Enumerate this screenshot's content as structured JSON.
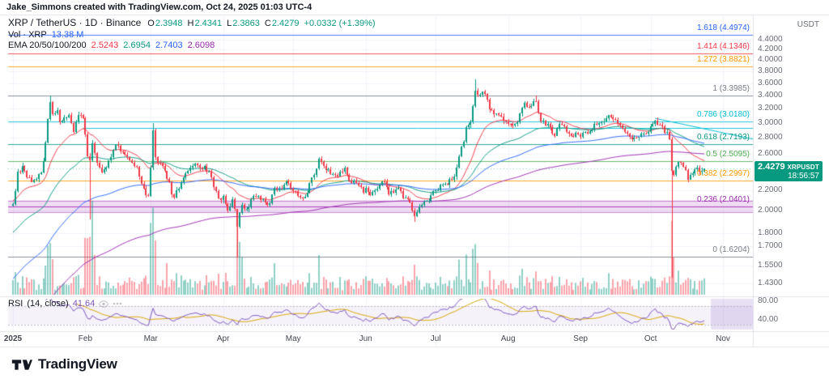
{
  "attribution": "Jake_Simmons created with TradingView.com, Oct 24, 2025 01:03 UTC-4",
  "legend": {
    "title": "XRP / TetherUS · 1D · Binance",
    "ohlc": {
      "o_label": "O",
      "o": "2.3948",
      "h_label": "H",
      "h": "2.4341",
      "l_label": "L",
      "l": "2.3863",
      "c_label": "C",
      "c": "2.4279",
      "change": "+0.0332 (+1.39%)"
    },
    "volume": {
      "label": "Vol · XRP",
      "value": "13.38 M"
    },
    "ema": {
      "label": "EMA 20/50/100/200",
      "values": [
        "2.5243",
        "2.6954",
        "2.7403",
        "2.6098"
      ]
    }
  },
  "rsi_legend": {
    "title": "RSI",
    "params": "(14, close)",
    "value": "41.64"
  },
  "price_axis": {
    "currency": "USDT",
    "labels": [
      "4.4000",
      "4.2000",
      "4.0000",
      "3.8000",
      "3.6000",
      "3.4000",
      "3.2000",
      "3.0000",
      "2.8000",
      "2.6000",
      "2.2000",
      "2.0000",
      "1.8000",
      "1.7000",
      "1.5500",
      "1.4300"
    ],
    "label_prices": [
      4.4,
      4.2,
      4.0,
      3.8,
      3.6,
      3.4,
      3.2,
      3.0,
      2.8,
      2.6,
      2.2,
      2.0,
      1.8,
      1.7,
      1.55,
      1.43
    ]
  },
  "rsi_axis": {
    "labels": [
      "80.00",
      "40.00"
    ],
    "values": [
      80,
      40
    ]
  },
  "time_axis": {
    "labels": [
      "2025",
      "Feb",
      "Mar",
      "Apr",
      "May",
      "Jun",
      "Jul",
      "Aug",
      "Sep",
      "Oct",
      "Nov"
    ],
    "day_offsets": [
      0,
      31,
      59,
      90,
      120,
      151,
      181,
      212,
      243,
      273,
      304
    ]
  },
  "price_badge": {
    "price": "2.4279",
    "symbol": "XRPUSDT",
    "countdown": "18:56:57"
  },
  "footer": {
    "logo_text": "TradingView"
  },
  "colors": {
    "up": "#089981",
    "down": "#f23645",
    "volume_value": "#2962ff",
    "rsi_line": "#7e57c2",
    "rsi_ma": "#d9a400",
    "accent_badge": "#089981",
    "grid": "#f0f3fa",
    "separator": "#e0e3eb",
    "axis_text": "#6a6d78"
  },
  "chart_data": {
    "type": "candlestick",
    "symbol": "XRPUSDT",
    "exchange": "Binance",
    "timeframe": "1D",
    "scale": "log",
    "start_date": "2025-01-01",
    "days": 297,
    "price_range_visible": [
      1.35,
      4.9
    ],
    "last_candle": {
      "o": 2.3948,
      "h": 2.4341,
      "l": 2.3863,
      "c": 2.4279
    },
    "close_anchors": [
      [
        0,
        2.05
      ],
      [
        1,
        2.18
      ],
      [
        2,
        2.38
      ],
      [
        4,
        2.44
      ],
      [
        6,
        2.36
      ],
      [
        8,
        2.28
      ],
      [
        10,
        2.33
      ],
      [
        12,
        2.4
      ],
      [
        13,
        2.5
      ],
      [
        14,
        2.74
      ],
      [
        15,
        3.06
      ],
      [
        16,
        3.29
      ],
      [
        17,
        3.14
      ],
      [
        18,
        3.1
      ],
      [
        19,
        3.17
      ],
      [
        20,
        3.04
      ],
      [
        22,
        3.08
      ],
      [
        24,
        3.12
      ],
      [
        26,
        2.9
      ],
      [
        27,
        3.03
      ],
      [
        29,
        3.13
      ],
      [
        30,
        3.05
      ],
      [
        31,
        2.87
      ],
      [
        32,
        2.58
      ],
      [
        33,
        2.5
      ],
      [
        34,
        2.73
      ],
      [
        35,
        2.62
      ],
      [
        36,
        2.48
      ],
      [
        38,
        2.4
      ],
      [
        40,
        2.46
      ],
      [
        42,
        2.55
      ],
      [
        44,
        2.73
      ],
      [
        45,
        2.68
      ],
      [
        47,
        2.6
      ],
      [
        49,
        2.56
      ],
      [
        51,
        2.5
      ],
      [
        53,
        2.42
      ],
      [
        55,
        2.28
      ],
      [
        57,
        2.16
      ],
      [
        58,
        2.12
      ],
      [
        59,
        2.46
      ],
      [
        60,
        2.87
      ],
      [
        61,
        2.54
      ],
      [
        62,
        2.5
      ],
      [
        64,
        2.44
      ],
      [
        66,
        2.34
      ],
      [
        68,
        2.17
      ],
      [
        69,
        2.14
      ],
      [
        71,
        2.24
      ],
      [
        73,
        2.34
      ],
      [
        75,
        2.38
      ],
      [
        77,
        2.47
      ],
      [
        78,
        2.5
      ],
      [
        80,
        2.42
      ],
      [
        82,
        2.44
      ],
      [
        84,
        2.38
      ],
      [
        86,
        2.24
      ],
      [
        88,
        2.14
      ],
      [
        89,
        2.09
      ],
      [
        90,
        2.13
      ],
      [
        92,
        2.01
      ],
      [
        94,
        2.09
      ],
      [
        95,
        2.0
      ],
      [
        96,
        1.88
      ],
      [
        97,
        1.97
      ],
      [
        98,
        2.07
      ],
      [
        100,
        2.0
      ],
      [
        102,
        2.09
      ],
      [
        104,
        2.15
      ],
      [
        106,
        2.1
      ],
      [
        108,
        2.07
      ],
      [
        110,
        2.06
      ],
      [
        112,
        2.24
      ],
      [
        114,
        2.2
      ],
      [
        116,
        2.25
      ],
      [
        118,
        2.29
      ],
      [
        119,
        2.22
      ],
      [
        120,
        2.21
      ],
      [
        122,
        2.14
      ],
      [
        124,
        2.12
      ],
      [
        126,
        2.18
      ],
      [
        128,
        2.32
      ],
      [
        130,
        2.42
      ],
      [
        131,
        2.56
      ],
      [
        132,
        2.5
      ],
      [
        134,
        2.42
      ],
      [
        136,
        2.39
      ],
      [
        138,
        2.34
      ],
      [
        140,
        2.4
      ],
      [
        142,
        2.44
      ],
      [
        144,
        2.32
      ],
      [
        146,
        2.28
      ],
      [
        148,
        2.25
      ],
      [
        150,
        2.17
      ],
      [
        151,
        2.23
      ],
      [
        153,
        2.16
      ],
      [
        155,
        2.2
      ],
      [
        157,
        2.27
      ],
      [
        159,
        2.3
      ],
      [
        161,
        2.16
      ],
      [
        163,
        2.18
      ],
      [
        165,
        2.2
      ],
      [
        167,
        2.14
      ],
      [
        169,
        2.1
      ],
      [
        171,
        2.02
      ],
      [
        172,
        1.96
      ],
      [
        174,
        2.05
      ],
      [
        176,
        2.09
      ],
      [
        178,
        2.11
      ],
      [
        180,
        2.19
      ],
      [
        181,
        2.17
      ],
      [
        183,
        2.23
      ],
      [
        185,
        2.26
      ],
      [
        187,
        2.3
      ],
      [
        189,
        2.36
      ],
      [
        190,
        2.42
      ],
      [
        191,
        2.55
      ],
      [
        193,
        2.78
      ],
      [
        194,
        2.92
      ],
      [
        196,
        2.99
      ],
      [
        197,
        3.21
      ],
      [
        198,
        3.47
      ],
      [
        199,
        3.42
      ],
      [
        200,
        3.4
      ],
      [
        202,
        3.45
      ],
      [
        203,
        3.3
      ],
      [
        204,
        3.18
      ],
      [
        206,
        3.13
      ],
      [
        208,
        3.08
      ],
      [
        210,
        3.05
      ],
      [
        211,
        3.02
      ],
      [
        212,
        2.96
      ],
      [
        214,
        2.99
      ],
      [
        216,
        3.02
      ],
      [
        218,
        3.2
      ],
      [
        219,
        3.28
      ],
      [
        221,
        3.2
      ],
      [
        223,
        3.29
      ],
      [
        224,
        3.33
      ],
      [
        225,
        3.12
      ],
      [
        226,
        3.04
      ],
      [
        228,
        2.99
      ],
      [
        230,
        2.92
      ],
      [
        232,
        2.84
      ],
      [
        234,
        2.99
      ],
      [
        236,
        2.93
      ],
      [
        238,
        2.88
      ],
      [
        240,
        2.81
      ],
      [
        242,
        2.87
      ],
      [
        243,
        2.83
      ],
      [
        245,
        2.86
      ],
      [
        247,
        2.88
      ],
      [
        249,
        2.96
      ],
      [
        251,
        3.0
      ],
      [
        253,
        3.03
      ],
      [
        255,
        3.09
      ],
      [
        257,
        3.04
      ],
      [
        259,
        2.97
      ],
      [
        261,
        2.89
      ],
      [
        263,
        2.84
      ],
      [
        265,
        2.8
      ],
      [
        267,
        2.77
      ],
      [
        269,
        2.83
      ],
      [
        271,
        2.87
      ],
      [
        273,
        2.92
      ],
      [
        275,
        3.01
      ],
      [
        277,
        2.97
      ],
      [
        279,
        2.89
      ],
      [
        281,
        2.8
      ],
      [
        282,
        2.38
      ],
      [
        283,
        2.35
      ],
      [
        284,
        2.44
      ],
      [
        285,
        2.52
      ],
      [
        286,
        2.47
      ],
      [
        288,
        2.4
      ],
      [
        289,
        2.32
      ],
      [
        291,
        2.37
      ],
      [
        293,
        2.46
      ],
      [
        294,
        2.37
      ],
      [
        295,
        2.4
      ],
      [
        296,
        2.4279
      ]
    ],
    "wick_events": [
      {
        "day": 16,
        "high": 3.4
      },
      {
        "day": 33,
        "low": 1.92
      },
      {
        "day": 60,
        "high": 3.0
      },
      {
        "day": 96,
        "low": 1.61
      },
      {
        "day": 172,
        "low": 1.9
      },
      {
        "day": 198,
        "high": 3.66
      },
      {
        "day": 224,
        "high": 3.4
      },
      {
        "day": 282,
        "low": 1.47
      }
    ],
    "volume_spikes": [
      [
        15,
        2.0
      ],
      [
        16,
        3.0
      ],
      [
        17,
        2.0
      ],
      [
        31,
        3.5
      ],
      [
        32,
        4.0
      ],
      [
        33,
        5.0
      ],
      [
        34,
        8.0
      ],
      [
        35,
        3.0
      ],
      [
        59,
        3.0
      ],
      [
        60,
        4.5
      ],
      [
        61,
        3.0
      ],
      [
        66,
        2.0
      ],
      [
        96,
        5.5
      ],
      [
        97,
        4.0
      ],
      [
        98,
        2.5
      ],
      [
        112,
        2.0
      ],
      [
        131,
        2.2
      ],
      [
        172,
        1.8
      ],
      [
        191,
        2.0
      ],
      [
        194,
        2.6
      ],
      [
        197,
        2.8
      ],
      [
        198,
        3.2
      ],
      [
        199,
        2.2
      ],
      [
        218,
        1.8
      ],
      [
        224,
        2.0
      ],
      [
        255,
        1.5
      ],
      [
        282,
        5.0
      ],
      [
        283,
        3.2
      ],
      [
        285,
        1.8
      ]
    ],
    "last_volume": "13.38 M",
    "ema_periods": [
      20,
      50,
      100,
      200
    ],
    "ema_init": [
      2.1,
      1.8,
      1.45,
      1.12
    ],
    "ema_last_values": [
      2.5243,
      2.6954,
      2.7403,
      2.6098
    ],
    "ema_colors": [
      "#f23645",
      "#089981",
      "#2962ff",
      "#9c27b0"
    ],
    "rsi": {
      "period": 14,
      "last": 41.64,
      "overbought": 70,
      "oversold": 30
    },
    "fib_levels": [
      {
        "ratio": "1.618",
        "price": 4.4974,
        "label": "1.618 (4.4974)",
        "color": "#2962ff"
      },
      {
        "ratio": "1.414",
        "price": 4.1346,
        "label": "1.414 (4.1346)",
        "color": "#f23645"
      },
      {
        "ratio": "1.272",
        "price": 3.8821,
        "label": "1.272 (3.8821)",
        "color": "#ff9800"
      },
      {
        "ratio": "1",
        "price": 3.3985,
        "label": "1 (3.3985)",
        "color": "#787b86"
      },
      {
        "ratio": "0.786",
        "price": 3.018,
        "label": "0.786 (3.0180)",
        "color": "#00bcd4"
      },
      {
        "ratio": "0.618",
        "price": 2.7193,
        "label": "0.618 (2.7193)",
        "color": "#089981"
      },
      {
        "ratio": "0.5",
        "price": 2.5095,
        "label": "0.5 (2.5095)",
        "color": "#4caf50"
      },
      {
        "ratio": "0.382",
        "price": 2.2997,
        "label": "0.382 (2.2997)",
        "color": "#ff9800"
      },
      {
        "ratio": "0.236",
        "price": 2.0401,
        "label": "0.236 (2.0401)",
        "color": "#9c27b0",
        "band": [
          1.985,
          2.096
        ]
      },
      {
        "ratio": "0",
        "price": 1.6204,
        "label": "0 (1.6204)",
        "color": "#787b86"
      }
    ],
    "horizontal_line": {
      "price": 2.93,
      "from_day": 30,
      "color": "#00bcd4"
    },
    "trendline": {
      "from_day": 275,
      "from_price": 3.06,
      "to_day": 317,
      "to_price": 2.78,
      "color": "#00bcd4"
    },
    "candle_colors": {
      "up": "#089981",
      "down": "#f23645"
    }
  }
}
